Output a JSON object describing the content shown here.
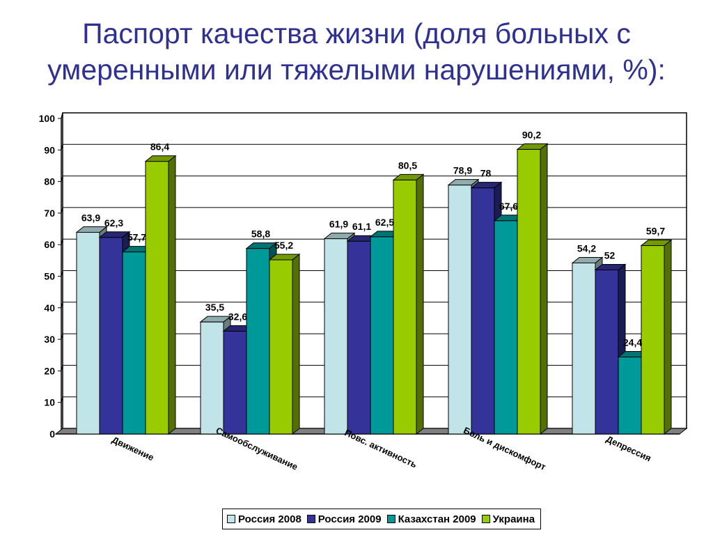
{
  "title": {
    "line1": "Паспорт качества жизни (доля больных с",
    "line2": "умеренными или тяжелыми нарушениями, %):"
  },
  "chart_data": {
    "type": "bar",
    "three_d": true,
    "categories": [
      "Движение",
      "Самообслуживание",
      "Повс. активность",
      "Боль и дискомфорт",
      "Депрессия"
    ],
    "series": [
      {
        "name": "Россия 2008",
        "color": "#c0e4e8",
        "values": [
          63.9,
          35.5,
          61.9,
          78.9,
          54.2
        ],
        "labels": [
          "63,9",
          "35,5",
          "61,9",
          "78,9",
          "54,2"
        ]
      },
      {
        "name": "Россия 2009",
        "color": "#333399",
        "values": [
          62.3,
          32.6,
          61.1,
          78,
          52
        ],
        "labels": [
          "62,3",
          "32,6",
          "61,1",
          "78",
          "52"
        ]
      },
      {
        "name": "Казахстан 2009",
        "color": "#009999",
        "values": [
          57.7,
          58.8,
          62.5,
          67.6,
          24.4
        ],
        "labels": [
          "57,7",
          "58,8",
          "62,5",
          "67,6",
          "24,4"
        ]
      },
      {
        "name": "Украина",
        "color": "#99cc00",
        "values": [
          86.4,
          55.2,
          80.5,
          90.2,
          59.7
        ],
        "labels": [
          "86,4",
          "55,2",
          "80,5",
          "90,2",
          "59,7"
        ]
      }
    ],
    "ylim": [
      0,
      100
    ],
    "yticks": [
      0,
      10,
      20,
      30,
      40,
      50,
      60,
      70,
      80,
      90,
      100
    ],
    "grid": true,
    "legend_position": "bottom"
  }
}
